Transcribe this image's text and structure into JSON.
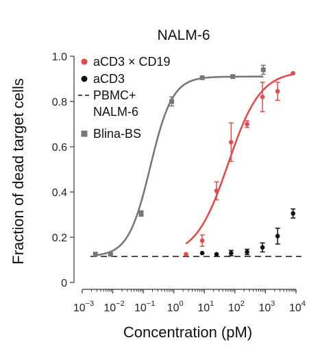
{
  "chart_data": {
    "type": "line",
    "title": "NALM-6",
    "xlabel": "Concentration (pM)",
    "ylabel": "Fraction of dead target cells",
    "xscale": "log",
    "xlim": [
      0.001,
      10000
    ],
    "ylim": [
      0,
      1.0
    ],
    "x_ticks": [
      {
        "base": "10",
        "exp": "−3"
      },
      {
        "base": "10",
        "exp": "−2"
      },
      {
        "base": "10",
        "exp": "−1"
      },
      {
        "base": "10",
        "exp": "0"
      },
      {
        "base": "10",
        "exp": "1"
      },
      {
        "base": "10",
        "exp": "2"
      },
      {
        "base": "10",
        "exp": "3"
      },
      {
        "base": "10",
        "exp": "4"
      }
    ],
    "y_ticks": [
      "0",
      "0.2",
      "0.4",
      "0.6",
      "0.8",
      "1.0"
    ],
    "y_tick_values": [
      0,
      0.2,
      0.4,
      0.6,
      0.8,
      1.0
    ],
    "legend_position": "top-left",
    "grid": false,
    "series": [
      {
        "name": "aCD3 × CD19",
        "color": "#e8474b",
        "marker": "circle",
        "points": [
          {
            "x": 2.5,
            "y": 0.125,
            "err": 0
          },
          {
            "x": 8.5,
            "y": 0.185,
            "err": 0.025
          },
          {
            "x": 25,
            "y": 0.405,
            "err": 0.04
          },
          {
            "x": 75,
            "y": 0.62,
            "err": 0.085
          },
          {
            "x": 250,
            "y": 0.7,
            "err": 0.015
          },
          {
            "x": 800,
            "y": 0.82,
            "err": 0.065
          },
          {
            "x": 2500,
            "y": 0.845,
            "err": 0.04
          },
          {
            "x": 8000,
            "y": 0.925,
            "err": 0
          }
        ],
        "fit": {
          "bottom": 0.115,
          "top": 0.935,
          "ec50": 60,
          "hill": 0.82,
          "xmin": 2.5,
          "xmax": 8000
        }
      },
      {
        "name": "aCD3",
        "color": "#111111",
        "marker": "circle",
        "points": [
          {
            "x": 8.5,
            "y": 0.13,
            "err": 0
          },
          {
            "x": 25,
            "y": 0.125,
            "err": 0
          },
          {
            "x": 75,
            "y": 0.13,
            "err": 0.012
          },
          {
            "x": 250,
            "y": 0.135,
            "err": 0.012
          },
          {
            "x": 800,
            "y": 0.155,
            "err": 0.02
          },
          {
            "x": 2500,
            "y": 0.205,
            "err": 0.035
          },
          {
            "x": 8000,
            "y": 0.305,
            "err": 0.02
          }
        ]
      },
      {
        "name": "PBMC+",
        "name_line2": "NALM-6",
        "color": "#111111",
        "style": "dashed",
        "y": 0.115
      },
      {
        "name": "Blina-BS",
        "color": "#777777",
        "marker": "square",
        "points": [
          {
            "x": 0.0027,
            "y": 0.125,
            "err": 0
          },
          {
            "x": 0.0085,
            "y": 0.125,
            "err": 0
          },
          {
            "x": 0.085,
            "y": 0.305,
            "err": 0.012
          },
          {
            "x": 0.85,
            "y": 0.8,
            "err": 0.02
          },
          {
            "x": 8.5,
            "y": 0.905,
            "err": 0
          },
          {
            "x": 85,
            "y": 0.91,
            "err": 0
          },
          {
            "x": 850,
            "y": 0.94,
            "err": 0.02
          }
        ],
        "fit": {
          "bottom": 0.115,
          "top": 0.91,
          "ec50": 0.17,
          "hill": 1.2,
          "xmin": 0.0027,
          "xmax": 850
        }
      }
    ]
  }
}
